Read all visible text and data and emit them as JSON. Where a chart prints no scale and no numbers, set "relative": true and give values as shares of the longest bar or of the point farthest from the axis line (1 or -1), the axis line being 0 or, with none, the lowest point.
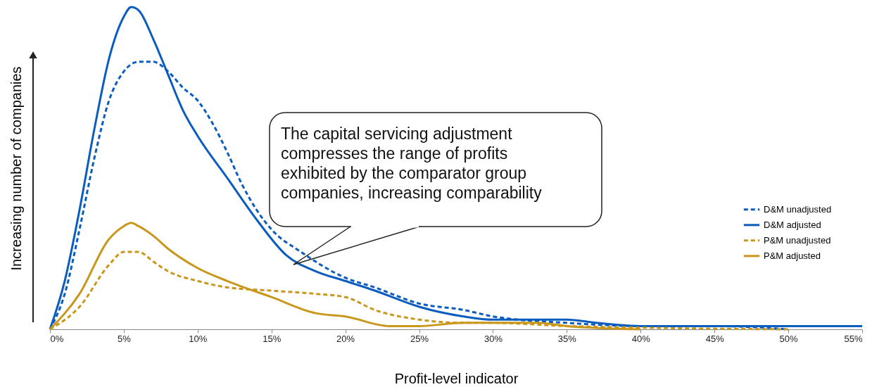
{
  "chart_data": {
    "type": "line",
    "relative": true,
    "xlabel": "Profit-level indicator",
    "ylabel": "Increasing number of companies",
    "xlim": [
      0,
      55
    ],
    "xticks": [
      {
        "value": 0,
        "label": "0%"
      },
      {
        "value": 5,
        "label": "5%"
      },
      {
        "value": 10,
        "label": "10%"
      },
      {
        "value": 15,
        "label": "15%"
      },
      {
        "value": 20,
        "label": "20%"
      },
      {
        "value": 25,
        "label": "25%"
      },
      {
        "value": 30,
        "label": "30%"
      },
      {
        "value": 35,
        "label": "35%"
      },
      {
        "value": 40,
        "label": "40%"
      },
      {
        "value": 45,
        "label": "45%"
      },
      {
        "value": 50,
        "label": "50%"
      },
      {
        "value": 55,
        "label": "55%"
      }
    ],
    "legend": "right",
    "series": [
      {
        "name": "D&M unadjusted",
        "color": "#0a5cbe",
        "line_style": "dashed",
        "x": [
          0,
          1,
          2,
          3,
          4,
          5,
          6,
          6.5,
          7,
          8,
          9,
          10,
          11,
          12,
          13,
          14,
          15,
          17,
          20,
          22,
          25,
          28,
          30,
          35,
          40,
          45,
          50
        ],
        "values": [
          0,
          0.11,
          0.31,
          0.53,
          0.71,
          0.8,
          0.83,
          0.83,
          0.83,
          0.8,
          0.75,
          0.71,
          0.64,
          0.55,
          0.45,
          0.37,
          0.31,
          0.24,
          0.16,
          0.13,
          0.08,
          0.06,
          0.04,
          0.02,
          0.01,
          0.01,
          0
        ]
      },
      {
        "name": "D&M adjusted",
        "color": "#0a5cbe",
        "line_style": "solid",
        "x": [
          0,
          1,
          2,
          3,
          4,
          5,
          5.5,
          6,
          7,
          8,
          9,
          10,
          12,
          14,
          16,
          18,
          20,
          22,
          25,
          28,
          30,
          33,
          35,
          37,
          40,
          45,
          55
        ],
        "values": [
          0,
          0.15,
          0.37,
          0.62,
          0.84,
          0.97,
          1,
          0.99,
          0.9,
          0.79,
          0.68,
          0.6,
          0.47,
          0.34,
          0.23,
          0.18,
          0.15,
          0.12,
          0.07,
          0.04,
          0.03,
          0.03,
          0.03,
          0.02,
          0.01,
          0.01,
          0.01
        ]
      },
      {
        "name": "P&M unadjusted",
        "color": "#c9971c",
        "line_style": "dashed",
        "x": [
          0,
          2,
          4,
          5,
          5.5,
          6,
          7,
          8,
          10,
          12,
          15,
          18,
          20,
          22,
          25,
          28,
          30,
          35,
          40,
          50
        ],
        "values": [
          0,
          0.07,
          0.2,
          0.24,
          0.24,
          0.24,
          0.21,
          0.18,
          0.15,
          0.13,
          0.12,
          0.11,
          0.1,
          0.06,
          0.03,
          0.02,
          0.02,
          0.01,
          0.005,
          0
        ]
      },
      {
        "name": "P&M adjusted",
        "color": "#c9971c",
        "line_style": "solid",
        "x": [
          0,
          2,
          4,
          5,
          5.5,
          6,
          7,
          8,
          10,
          12,
          15,
          18,
          20,
          23,
          25,
          28,
          30,
          33,
          35,
          40
        ],
        "values": [
          0,
          0.11,
          0.28,
          0.32,
          0.33,
          0.32,
          0.29,
          0.25,
          0.19,
          0.15,
          0.1,
          0.05,
          0.04,
          0.01,
          0.01,
          0.02,
          0.02,
          0.02,
          0.01,
          0
        ]
      }
    ],
    "annotations": [
      "The capital servicing adjustment compresses the range of profits exhibited by the comparator group companies, increasing comparability"
    ]
  }
}
